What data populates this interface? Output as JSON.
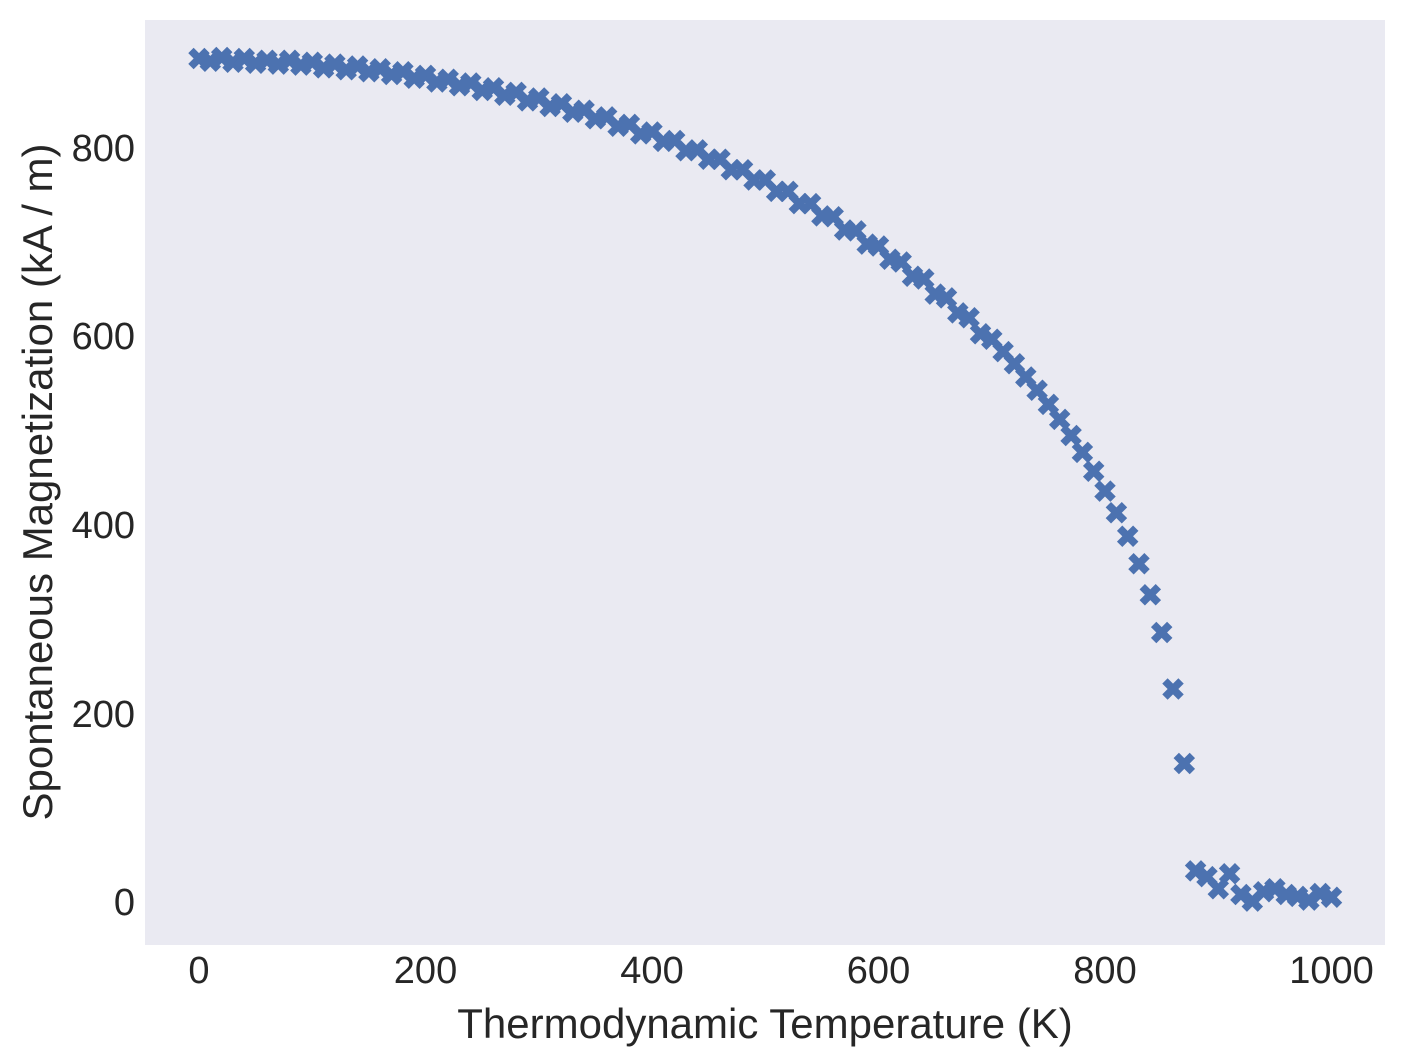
{
  "figure": {
    "background": "#ffffff",
    "plot_background": "#eaeaf2",
    "marker_color": "#4c72b0",
    "text_color": "#262626"
  },
  "chart_data": {
    "type": "scatter",
    "marker": "X",
    "title": "",
    "xlabel": "Thermodynamic Temperature (K)",
    "ylabel": "Spontaneous Magnetization (kA / m)",
    "xlim": [
      -47.7,
      1047.2
    ],
    "ylim": [
      -44.6,
      936.8
    ],
    "x_ticks": [
      0,
      200,
      400,
      600,
      800,
      1000
    ],
    "y_ticks": [
      0,
      200,
      400,
      600,
      800
    ],
    "grid": false,
    "legend_position": "none",
    "points": [
      [
        0,
        896
      ],
      [
        10,
        893
      ],
      [
        20,
        897
      ],
      [
        30,
        892
      ],
      [
        40,
        896
      ],
      [
        50,
        891
      ],
      [
        60,
        894
      ],
      [
        70,
        890
      ],
      [
        80,
        894
      ],
      [
        90,
        889
      ],
      [
        100,
        892
      ],
      [
        110,
        886
      ],
      [
        120,
        890
      ],
      [
        130,
        884
      ],
      [
        140,
        888
      ],
      [
        150,
        882
      ],
      [
        160,
        885
      ],
      [
        170,
        879
      ],
      [
        180,
        882
      ],
      [
        190,
        875
      ],
      [
        200,
        878
      ],
      [
        210,
        871
      ],
      [
        220,
        874
      ],
      [
        230,
        867
      ],
      [
        240,
        870
      ],
      [
        250,
        862
      ],
      [
        260,
        865
      ],
      [
        270,
        857
      ],
      [
        280,
        860
      ],
      [
        290,
        851
      ],
      [
        300,
        854
      ],
      [
        310,
        845
      ],
      [
        320,
        848
      ],
      [
        330,
        839
      ],
      [
        340,
        841
      ],
      [
        350,
        832
      ],
      [
        360,
        834
      ],
      [
        370,
        824
      ],
      [
        380,
        826
      ],
      [
        390,
        816
      ],
      [
        400,
        818
      ],
      [
        410,
        808
      ],
      [
        420,
        809
      ],
      [
        430,
        798
      ],
      [
        440,
        799
      ],
      [
        450,
        789
      ],
      [
        460,
        789
      ],
      [
        470,
        778
      ],
      [
        480,
        778
      ],
      [
        490,
        767
      ],
      [
        500,
        767
      ],
      [
        510,
        755
      ],
      [
        520,
        755
      ],
      [
        530,
        742
      ],
      [
        540,
        742
      ],
      [
        550,
        729
      ],
      [
        560,
        728
      ],
      [
        570,
        714
      ],
      [
        580,
        713
      ],
      [
        590,
        699
      ],
      [
        600,
        697
      ],
      [
        610,
        683
      ],
      [
        620,
        680
      ],
      [
        630,
        665
      ],
      [
        640,
        662
      ],
      [
        650,
        646
      ],
      [
        660,
        642
      ],
      [
        670,
        626
      ],
      [
        680,
        621
      ],
      [
        690,
        604
      ],
      [
        700,
        598
      ],
      [
        710,
        585
      ],
      [
        720,
        572
      ],
      [
        730,
        558
      ],
      [
        740,
        544
      ],
      [
        750,
        529
      ],
      [
        760,
        513
      ],
      [
        770,
        496
      ],
      [
        780,
        478
      ],
      [
        790,
        458
      ],
      [
        800,
        437
      ],
      [
        810,
        414
      ],
      [
        820,
        389
      ],
      [
        830,
        360
      ],
      [
        840,
        327
      ],
      [
        850,
        287
      ],
      [
        860,
        227
      ],
      [
        870,
        148
      ],
      [
        880,
        34
      ],
      [
        890,
        28
      ],
      [
        900,
        15
      ],
      [
        910,
        31
      ],
      [
        920,
        9
      ],
      [
        930,
        2
      ],
      [
        940,
        12
      ],
      [
        950,
        15
      ],
      [
        960,
        9
      ],
      [
        970,
        7
      ],
      [
        980,
        3
      ],
      [
        990,
        10
      ],
      [
        1000,
        6
      ]
    ]
  }
}
